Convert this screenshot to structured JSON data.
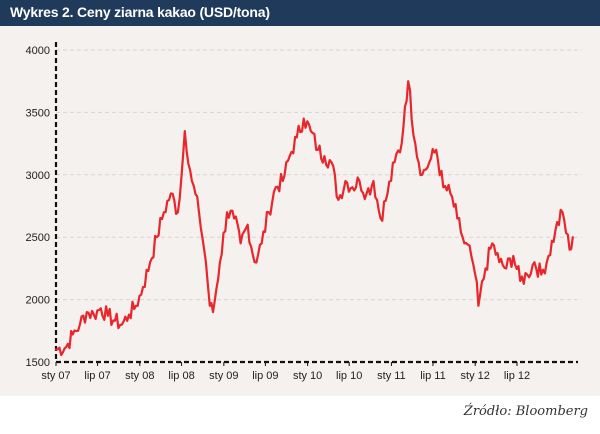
{
  "header": {
    "title": "Wykres 2. Ceny ziarna kakao (USD/tona)"
  },
  "source": "Źródło: Bloomberg",
  "colors": {
    "header_bg": "#1f3a5a",
    "plot_bg": "#f4f1ee",
    "line": "#e8262b",
    "grid": "#d9d4cf"
  },
  "chart_data": {
    "type": "line",
    "title": "Wykres 2. Ceny ziarna kakao (USD/tona)",
    "xlabel": "",
    "ylabel": "",
    "ylim": [
      1500,
      4000
    ],
    "yticks": [
      1500,
      2000,
      2500,
      3000,
      3500,
      4000
    ],
    "ytick_labels": [
      "1500",
      "2000",
      "2500",
      "3000",
      "3500",
      "4000"
    ],
    "xlim": [
      "2007-01-01",
      "2013-03-15"
    ],
    "xtick_labels": [
      "sty 07",
      "lip 07",
      "sty 08",
      "lip 08",
      "sty 09",
      "lip 09",
      "sty 10",
      "lip 10",
      "sty 11",
      "lip 11",
      "sty 12",
      "lip 12"
    ],
    "xtick_dates": [
      "2007-01-01",
      "2007-07-01",
      "2008-01-01",
      "2008-07-01",
      "2009-01-01",
      "2009-07-01",
      "2010-01-01",
      "2010-07-01",
      "2011-01-01",
      "2011-07-01",
      "2012-01-01",
      "2012-07-01"
    ],
    "grid": true,
    "legend": "none",
    "series": [
      {
        "x": [
          "2007-01-01",
          "2007-02-15",
          "2007-03-15",
          "2007-04-15",
          "2007-05-15",
          "2007-06-15",
          "2007-07-15",
          "2007-08-15",
          "2007-09-15",
          "2007-10-15",
          "2007-11-15",
          "2007-12-15",
          "2008-01-15",
          "2008-02-15",
          "2008-03-15",
          "2008-04-15",
          "2008-05-15",
          "2008-06-15",
          "2008-07-01",
          "2008-07-15",
          "2008-08-15",
          "2008-09-15",
          "2008-10-15",
          "2008-11-01",
          "2008-11-15",
          "2008-12-15",
          "2009-01-15",
          "2009-02-15",
          "2009-03-15",
          "2009-04-15",
          "2009-05-15",
          "2009-06-15",
          "2009-07-15",
          "2009-08-15",
          "2009-09-15",
          "2009-10-15",
          "2009-11-15",
          "2009-12-15",
          "2010-01-15",
          "2010-02-15",
          "2010-03-15",
          "2010-04-15",
          "2010-05-15",
          "2010-06-15",
          "2010-07-15",
          "2010-08-15",
          "2010-09-15",
          "2010-10-15",
          "2010-11-15",
          "2010-12-15",
          "2011-01-15",
          "2011-02-15",
          "2011-03-01",
          "2011-03-15",
          "2011-04-15",
          "2011-05-15",
          "2011-06-15",
          "2011-07-15",
          "2011-08-15",
          "2011-09-15",
          "2011-10-15",
          "2011-11-15",
          "2011-12-15",
          "2012-01-01",
          "2012-01-15",
          "2012-02-15",
          "2012-03-15",
          "2012-04-15",
          "2012-05-15",
          "2012-06-15",
          "2012-07-15",
          "2012-08-15",
          "2012-09-15",
          "2012-10-15",
          "2012-11-15",
          "2012-12-15",
          "2013-01-15",
          "2013-02-15",
          "2013-03-01"
        ],
        "y": [
          1600,
          1620,
          1720,
          1800,
          1900,
          1880,
          1930,
          1870,
          1830,
          1800,
          1880,
          1950,
          2100,
          2300,
          2500,
          2700,
          2850,
          2700,
          3000,
          3350,
          2950,
          2700,
          2300,
          1950,
          1900,
          2300,
          2700,
          2650,
          2450,
          2600,
          2300,
          2450,
          2700,
          2900,
          2950,
          3150,
          3300,
          3450,
          3350,
          3200,
          3150,
          3100,
          2800,
          2950,
          2900,
          2950,
          2850,
          2950,
          2650,
          2850,
          3100,
          3250,
          3550,
          3750,
          3250,
          3000,
          3100,
          3200,
          2900,
          2850,
          2650,
          2450,
          2350,
          2200,
          1950,
          2250,
          2450,
          2300,
          2250,
          2350,
          2150,
          2200,
          2300,
          2200,
          2350,
          2550,
          2700,
          2400,
          2500
        ]
      }
    ]
  }
}
